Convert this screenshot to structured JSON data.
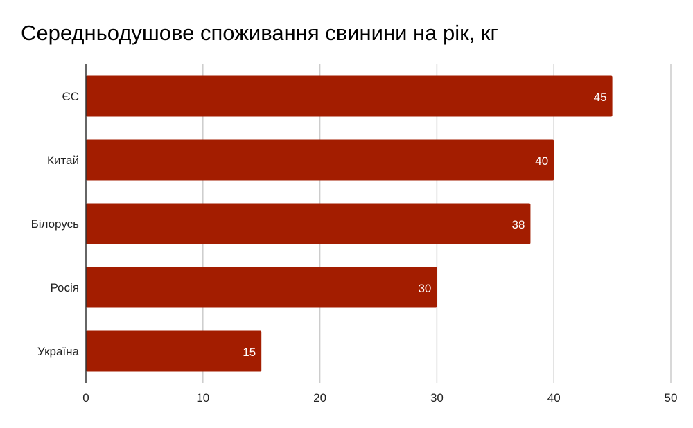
{
  "chart_data": {
    "type": "bar",
    "orientation": "horizontal",
    "title": "Середньодушове споживання свинини на рік, кг",
    "xlabel": "",
    "ylabel": "",
    "categories": [
      "ЄС",
      "Китай",
      "Білорусь",
      "Росія",
      "Україна"
    ],
    "values": [
      45,
      40,
      38,
      30,
      15
    ],
    "data_labels": [
      "45",
      "40",
      "38",
      "30",
      "15"
    ],
    "xlim": [
      0,
      50
    ],
    "x_ticks": [
      0,
      10,
      20,
      30,
      40,
      50
    ],
    "x_tick_labels": [
      "0",
      "10",
      "20",
      "30",
      "40",
      "50"
    ],
    "grid": true,
    "legend": "none",
    "colors": {
      "bar": "#a31d00",
      "grid": "#cccccc",
      "axis": "#333333"
    }
  }
}
